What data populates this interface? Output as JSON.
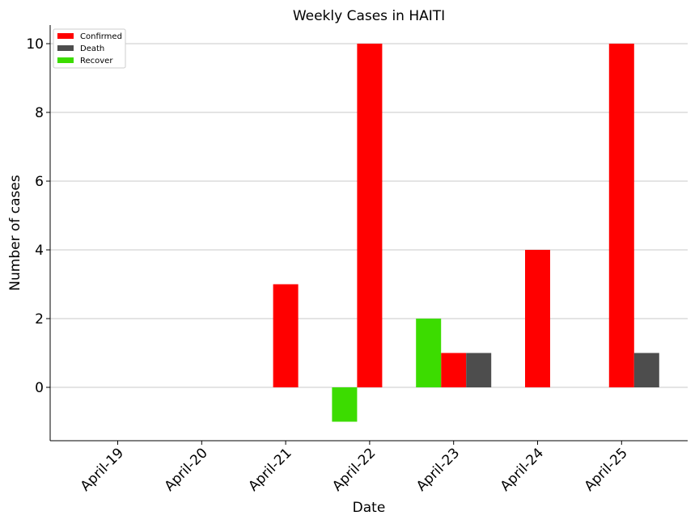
{
  "chart_data": {
    "type": "bar",
    "title": "Weekly Cases in HAITI",
    "xlabel": "Date",
    "ylabel": "Number of cases",
    "categories": [
      "April-19",
      "April-20",
      "April-21",
      "April-22",
      "April-23",
      "April-24",
      "April-25"
    ],
    "series": [
      {
        "name": "Confirmed",
        "color": "#ff0000",
        "offset": 0,
        "values": [
          0,
          0,
          3,
          10,
          1,
          4,
          10
        ]
      },
      {
        "name": "Death",
        "color": "#4d4d4d",
        "offset": 1,
        "values": [
          0,
          0,
          0,
          0,
          1,
          0,
          1
        ]
      },
      {
        "name": "Recover",
        "color": "#3cdc00",
        "offset": -1,
        "values": [
          0,
          0,
          0,
          -1,
          2,
          0,
          0
        ]
      }
    ],
    "yticks": [
      0,
      2,
      4,
      6,
      8,
      10
    ],
    "ylim": [
      -1.55,
      10.55
    ],
    "grid": "horizontal",
    "legend_position": "top-left"
  }
}
